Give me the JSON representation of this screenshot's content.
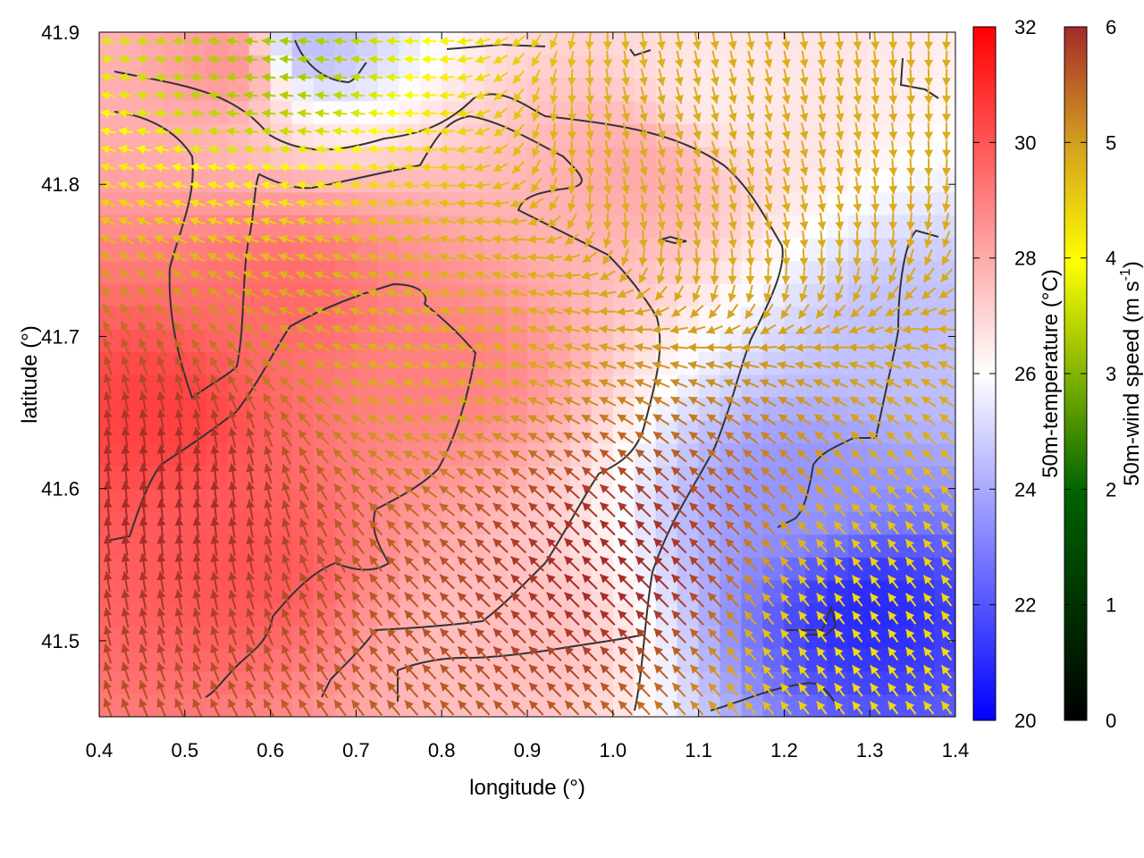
{
  "chart_data": {
    "type": "heatmap",
    "title": "",
    "xlabel": "longitude (°)",
    "ylabel": "latitude (°)",
    "xlim": [
      0.4,
      1.4
    ],
    "ylim": [
      41.45,
      41.9
    ],
    "xticks": [
      "0.4",
      "0.5",
      "0.6",
      "0.7",
      "0.8",
      "0.9",
      "1.0",
      "1.1",
      "1.2",
      "1.3",
      "1.4"
    ],
    "yticks": [
      "41.5",
      "41.6",
      "41.7",
      "41.8",
      "41.9"
    ],
    "temperature_colorbar": {
      "label": "50m-temperature (°C)",
      "range": [
        20,
        32
      ],
      "ticks": [
        "20",
        "22",
        "24",
        "26",
        "28",
        "30",
        "32"
      ],
      "colors": [
        "#0000ff",
        "#ffffff",
        "#ff0000"
      ]
    },
    "windspeed_colorbar": {
      "label_main": "50m-wind speed (m s",
      "label_sup": "-1",
      "label_end": ")",
      "range": [
        0,
        6
      ],
      "ticks": [
        "0",
        "1",
        "2",
        "3",
        "4",
        "5",
        "6"
      ],
      "colors": [
        "#000000",
        "#006400",
        "#ffff00",
        "#d4a020",
        "#a52a2a"
      ]
    },
    "temperature_field_hotspots": [
      {
        "lon": 0.47,
        "lat": 41.65,
        "t": 30.5
      },
      {
        "lon": 0.56,
        "lat": 41.55,
        "t": 30.0
      },
      {
        "lon": 0.62,
        "lat": 41.72,
        "t": 29.5
      },
      {
        "lon": 0.8,
        "lat": 41.68,
        "t": 29.0
      },
      {
        "lon": 1.02,
        "lat": 41.81,
        "t": 28.0
      },
      {
        "lon": 1.13,
        "lat": 41.86,
        "t": 26.5
      },
      {
        "lon": 0.88,
        "lat": 41.5,
        "t": 27.5
      },
      {
        "lon": 1.3,
        "lat": 41.52,
        "t": 21.0
      },
      {
        "lon": 1.22,
        "lat": 41.6,
        "t": 23.5
      },
      {
        "lon": 1.35,
        "lat": 41.7,
        "t": 24.5
      },
      {
        "lon": 0.55,
        "lat": 41.88,
        "t": 28.5
      },
      {
        "lon": 0.65,
        "lat": 41.89,
        "t": 24.5
      }
    ],
    "wind_field_description": [
      {
        "lon": 0.47,
        "lat": 41.6,
        "u": -0.1,
        "v": 1.0,
        "speed": 6.0
      },
      {
        "lon": 0.8,
        "lat": 41.7,
        "u": -1.0,
        "v": 0.3,
        "speed": 4.2
      },
      {
        "lon": 1.0,
        "lat": 41.55,
        "u": -0.7,
        "v": 0.7,
        "speed": 6.0
      },
      {
        "lon": 1.3,
        "lat": 41.5,
        "u": -0.6,
        "v": 0.8,
        "speed": 3.5
      },
      {
        "lon": 1.1,
        "lat": 41.82,
        "u": 0.3,
        "v": -1.0,
        "speed": 4.3
      },
      {
        "lon": 0.6,
        "lat": 41.88,
        "u": -1.0,
        "v": 0.1,
        "speed": 2.5
      }
    ]
  }
}
